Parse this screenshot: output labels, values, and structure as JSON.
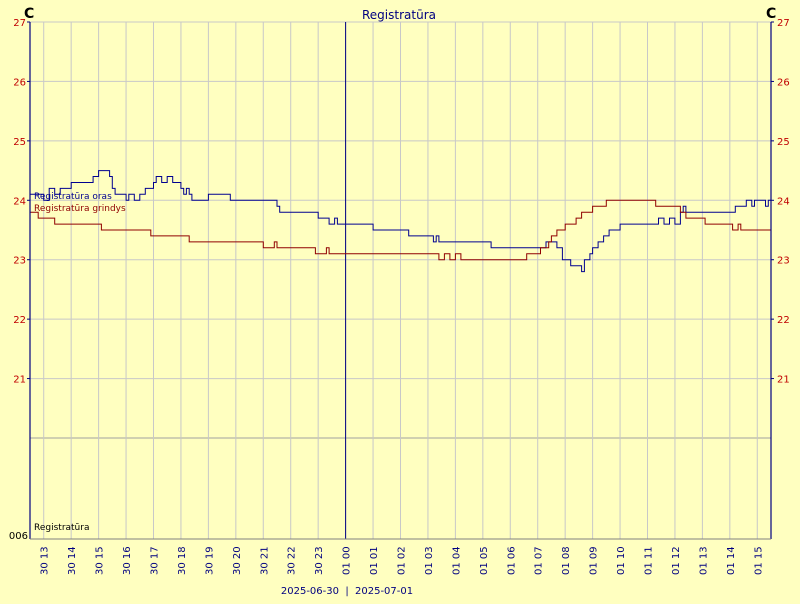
{
  "chart_data": {
    "type": "line",
    "title": "Registratūra",
    "unit_left": "C",
    "unit_right": "C",
    "y_ticks": [
      21,
      22,
      23,
      24,
      25,
      26,
      27
    ],
    "ylim": [
      20,
      27
    ],
    "bottom_panel_label": "Registratūra",
    "bottom_panel_value": "006",
    "x_tick_labels": [
      "30 13",
      "30 14",
      "30 15",
      "30 16",
      "30 17",
      "30 18",
      "30 19",
      "30 20",
      "30 21",
      "30 22",
      "30 23",
      "01 00",
      "01 01",
      "01 02",
      "01 03",
      "01 04",
      "01 05",
      "01 06",
      "01 07",
      "01 08",
      "01 09",
      "01 10",
      "01 11",
      "01 12",
      "01 13",
      "01 14",
      "01 15"
    ],
    "x_date_labels": [
      "2025-06-30",
      "2025-07-01"
    ],
    "x_start_hour": 12.5,
    "x_end_hour": 39.5,
    "midnight_hour": 24,
    "grid": true,
    "legend_position": "top-left",
    "colors": {
      "background": "#ffffc0",
      "grid": "#c8c8c8",
      "axis_left": "#000080",
      "axis_right": "#000080",
      "tick_text_left": "#c00000",
      "tick_text_right": "#c00000"
    },
    "series": [
      {
        "name": "Registratūra oras",
        "color": "#000090",
        "points": [
          [
            12.5,
            24.1
          ],
          [
            12.9,
            24.1
          ],
          [
            13.0,
            24.0
          ],
          [
            13.2,
            24.2
          ],
          [
            13.4,
            24.1
          ],
          [
            13.6,
            24.2
          ],
          [
            13.8,
            24.2
          ],
          [
            14.0,
            24.3
          ],
          [
            14.3,
            24.3
          ],
          [
            14.5,
            24.3
          ],
          [
            14.8,
            24.4
          ],
          [
            14.9,
            24.4
          ],
          [
            15.0,
            24.5
          ],
          [
            15.3,
            24.5
          ],
          [
            15.4,
            24.4
          ],
          [
            15.5,
            24.2
          ],
          [
            15.6,
            24.1
          ],
          [
            15.8,
            24.1
          ],
          [
            16.0,
            24.0
          ],
          [
            16.1,
            24.1
          ],
          [
            16.3,
            24.0
          ],
          [
            16.5,
            24.1
          ],
          [
            16.7,
            24.2
          ],
          [
            16.9,
            24.2
          ],
          [
            17.0,
            24.3
          ],
          [
            17.1,
            24.4
          ],
          [
            17.3,
            24.3
          ],
          [
            17.5,
            24.4
          ],
          [
            17.7,
            24.3
          ],
          [
            17.9,
            24.3
          ],
          [
            18.0,
            24.2
          ],
          [
            18.1,
            24.1
          ],
          [
            18.2,
            24.2
          ],
          [
            18.3,
            24.1
          ],
          [
            18.4,
            24.0
          ],
          [
            18.9,
            24.0
          ],
          [
            19.0,
            24.1
          ],
          [
            19.7,
            24.1
          ],
          [
            19.8,
            24.0
          ],
          [
            21.3,
            24.0
          ],
          [
            21.5,
            23.9
          ],
          [
            21.6,
            23.8
          ],
          [
            22.9,
            23.8
          ],
          [
            23.0,
            23.7
          ],
          [
            23.2,
            23.7
          ],
          [
            23.4,
            23.6
          ],
          [
            23.6,
            23.7
          ],
          [
            23.7,
            23.6
          ],
          [
            24.8,
            23.6
          ],
          [
            25.0,
            23.5
          ],
          [
            25.2,
            23.5
          ],
          [
            26.2,
            23.5
          ],
          [
            26.3,
            23.4
          ],
          [
            26.5,
            23.4
          ],
          [
            27.1,
            23.4
          ],
          [
            27.2,
            23.3
          ],
          [
            27.3,
            23.4
          ],
          [
            27.4,
            23.3
          ],
          [
            29.2,
            23.3
          ],
          [
            29.3,
            23.2
          ],
          [
            29.4,
            23.2
          ],
          [
            31.1,
            23.2
          ],
          [
            31.3,
            23.3
          ],
          [
            31.5,
            23.3
          ],
          [
            31.7,
            23.2
          ],
          [
            31.9,
            23.0
          ],
          [
            32.2,
            22.9
          ],
          [
            32.5,
            22.9
          ],
          [
            32.6,
            22.8
          ],
          [
            32.7,
            23.0
          ],
          [
            32.9,
            23.1
          ],
          [
            33.0,
            23.2
          ],
          [
            33.2,
            23.3
          ],
          [
            33.4,
            23.4
          ],
          [
            33.6,
            23.5
          ],
          [
            33.8,
            23.5
          ],
          [
            34.0,
            23.6
          ],
          [
            35.2,
            23.6
          ],
          [
            35.4,
            23.7
          ],
          [
            35.6,
            23.6
          ],
          [
            35.8,
            23.7
          ],
          [
            36.0,
            23.6
          ],
          [
            36.2,
            23.8
          ],
          [
            36.3,
            23.9
          ],
          [
            36.4,
            23.8
          ],
          [
            37.3,
            23.8
          ],
          [
            37.5,
            23.8
          ],
          [
            38.0,
            23.8
          ],
          [
            38.2,
            23.9
          ],
          [
            38.4,
            23.9
          ],
          [
            38.6,
            24.0
          ],
          [
            38.8,
            23.9
          ],
          [
            38.9,
            24.0
          ],
          [
            39.2,
            24.0
          ],
          [
            39.3,
            23.9
          ],
          [
            39.4,
            24.0
          ],
          [
            39.5,
            24.0
          ]
        ]
      },
      {
        "name": "Registratūra grindys",
        "color": "#900000",
        "points": [
          [
            12.5,
            23.8
          ],
          [
            12.7,
            23.8
          ],
          [
            12.8,
            23.7
          ],
          [
            13.3,
            23.7
          ],
          [
            13.4,
            23.6
          ],
          [
            15.0,
            23.6
          ],
          [
            15.1,
            23.5
          ],
          [
            16.8,
            23.5
          ],
          [
            16.9,
            23.4
          ],
          [
            17.1,
            23.4
          ],
          [
            18.2,
            23.4
          ],
          [
            18.3,
            23.3
          ],
          [
            20.9,
            23.3
          ],
          [
            21.0,
            23.2
          ],
          [
            21.3,
            23.2
          ],
          [
            21.4,
            23.3
          ],
          [
            21.5,
            23.2
          ],
          [
            22.8,
            23.2
          ],
          [
            22.9,
            23.1
          ],
          [
            23.2,
            23.1
          ],
          [
            23.3,
            23.2
          ],
          [
            23.4,
            23.1
          ],
          [
            27.3,
            23.1
          ],
          [
            27.4,
            23.0
          ],
          [
            27.6,
            23.1
          ],
          [
            27.8,
            23.0
          ],
          [
            28.0,
            23.1
          ],
          [
            28.2,
            23.0
          ],
          [
            30.5,
            23.0
          ],
          [
            30.6,
            23.1
          ],
          [
            31.0,
            23.1
          ],
          [
            31.1,
            23.2
          ],
          [
            31.3,
            23.2
          ],
          [
            31.4,
            23.3
          ],
          [
            31.5,
            23.4
          ],
          [
            31.7,
            23.5
          ],
          [
            31.9,
            23.5
          ],
          [
            32.0,
            23.6
          ],
          [
            32.2,
            23.6
          ],
          [
            32.4,
            23.7
          ],
          [
            32.6,
            23.8
          ],
          [
            32.9,
            23.8
          ],
          [
            33.0,
            23.9
          ],
          [
            33.3,
            23.9
          ],
          [
            33.5,
            24.0
          ],
          [
            35.2,
            24.0
          ],
          [
            35.3,
            23.9
          ],
          [
            36.1,
            23.9
          ],
          [
            36.2,
            23.8
          ],
          [
            36.4,
            23.7
          ],
          [
            37.0,
            23.7
          ],
          [
            37.1,
            23.6
          ],
          [
            38.0,
            23.6
          ],
          [
            38.1,
            23.5
          ],
          [
            38.3,
            23.6
          ],
          [
            38.4,
            23.5
          ],
          [
            39.5,
            23.5
          ]
        ]
      }
    ]
  }
}
